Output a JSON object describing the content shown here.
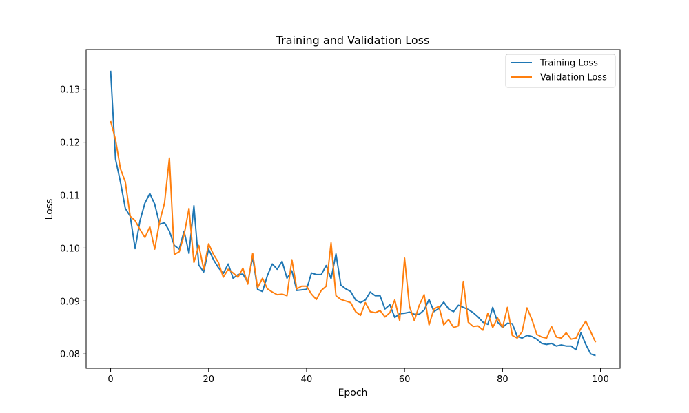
{
  "chart_data": {
    "type": "line",
    "title": "Training and Validation Loss",
    "xlabel": "Epoch",
    "ylabel": "Loss",
    "xlim": [
      -5,
      104
    ],
    "ylim": [
      0.0773,
      0.1375
    ],
    "xticks": [
      0,
      20,
      40,
      60,
      80,
      100
    ],
    "yticks": [
      0.08,
      0.09,
      0.1,
      0.11,
      0.12,
      0.13
    ],
    "ytick_labels": [
      "0.08",
      "0.09",
      "0.10",
      "0.11",
      "0.12",
      "0.13"
    ],
    "grid": false,
    "legend_position": "top-right",
    "x": [
      0,
      1,
      2,
      3,
      4,
      5,
      6,
      7,
      8,
      9,
      10,
      11,
      12,
      13,
      14,
      15,
      16,
      17,
      18,
      19,
      20,
      21,
      22,
      23,
      24,
      25,
      26,
      27,
      28,
      29,
      30,
      31,
      32,
      33,
      34,
      35,
      36,
      37,
      38,
      39,
      40,
      41,
      42,
      43,
      44,
      45,
      46,
      47,
      48,
      49,
      50,
      51,
      52,
      53,
      54,
      55,
      56,
      57,
      58,
      59,
      60,
      61,
      62,
      63,
      64,
      65,
      66,
      67,
      68,
      69,
      70,
      71,
      72,
      73,
      74,
      75,
      76,
      77,
      78,
      79,
      80,
      81,
      82,
      83,
      84,
      85,
      86,
      87,
      88,
      89,
      90,
      91,
      92,
      93,
      94,
      95,
      96,
      97,
      98,
      99
    ],
    "series": [
      {
        "name": "Training Loss",
        "color": "#1f77b4",
        "values": [
          0.1335,
          0.1168,
          0.1125,
          0.1075,
          0.106,
          0.0999,
          0.1052,
          0.1085,
          0.1103,
          0.1083,
          0.1045,
          0.1048,
          0.1032,
          0.1005,
          0.0998,
          0.1032,
          0.099,
          0.108,
          0.0968,
          0.0955,
          0.0998,
          0.0978,
          0.0963,
          0.0952,
          0.097,
          0.0943,
          0.095,
          0.0951,
          0.0935,
          0.0983,
          0.0922,
          0.0918,
          0.0948,
          0.097,
          0.096,
          0.0975,
          0.0943,
          0.0957,
          0.092,
          0.0921,
          0.0922,
          0.0953,
          0.095,
          0.095,
          0.0967,
          0.0942,
          0.0989,
          0.093,
          0.0923,
          0.0918,
          0.0902,
          0.0897,
          0.0902,
          0.0917,
          0.091,
          0.091,
          0.0885,
          0.0893,
          0.0869,
          0.0876,
          0.0877,
          0.0879,
          0.0875,
          0.0875,
          0.0883,
          0.0903,
          0.088,
          0.0886,
          0.0898,
          0.0885,
          0.088,
          0.0892,
          0.0888,
          0.0884,
          0.0878,
          0.087,
          0.086,
          0.0856,
          0.0888,
          0.086,
          0.085,
          0.0858,
          0.0857,
          0.0833,
          0.083,
          0.0835,
          0.0833,
          0.0828,
          0.082,
          0.0818,
          0.082,
          0.0815,
          0.0817,
          0.0815,
          0.0815,
          0.0808,
          0.084,
          0.0818,
          0.08,
          0.0797
        ]
      },
      {
        "name": "Validation Loss",
        "color": "#ff7f0e",
        "values": [
          0.124,
          0.1205,
          0.115,
          0.1125,
          0.106,
          0.1052,
          0.1035,
          0.102,
          0.104,
          0.0998,
          0.105,
          0.1085,
          0.117,
          0.0988,
          0.0993,
          0.1025,
          0.1075,
          0.0973,
          0.1005,
          0.096,
          0.1008,
          0.0988,
          0.0973,
          0.0945,
          0.096,
          0.0953,
          0.0945,
          0.0962,
          0.0932,
          0.099,
          0.0925,
          0.0943,
          0.0923,
          0.0917,
          0.0912,
          0.0913,
          0.091,
          0.0978,
          0.0923,
          0.0928,
          0.0928,
          0.0913,
          0.0903,
          0.092,
          0.0928,
          0.101,
          0.091,
          0.0903,
          0.09,
          0.0897,
          0.088,
          0.0873,
          0.0897,
          0.088,
          0.0878,
          0.0882,
          0.087,
          0.0878,
          0.0902,
          0.0863,
          0.0981,
          0.089,
          0.0863,
          0.0892,
          0.0912,
          0.0855,
          0.0885,
          0.089,
          0.0855,
          0.0865,
          0.085,
          0.0853,
          0.0937,
          0.086,
          0.0852,
          0.0853,
          0.0845,
          0.0877,
          0.085,
          0.0868,
          0.085,
          0.0888,
          0.0835,
          0.083,
          0.0842,
          0.0887,
          0.0865,
          0.0837,
          0.0832,
          0.083,
          0.0852,
          0.0832,
          0.083,
          0.084,
          0.0828,
          0.083,
          0.0848,
          0.0862,
          0.0842,
          0.0822
        ]
      }
    ]
  }
}
